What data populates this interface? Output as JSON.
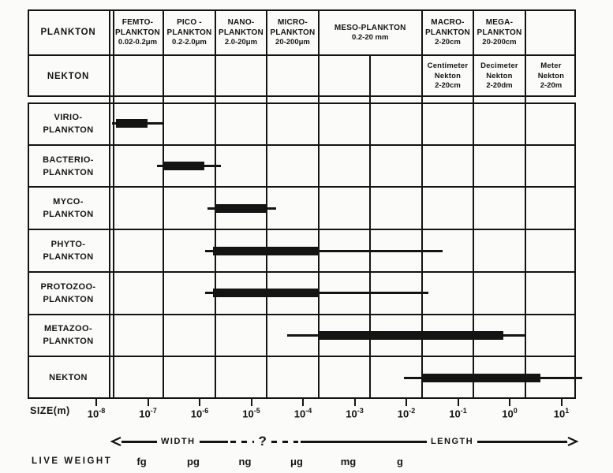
{
  "colors": {
    "ink": "#141414",
    "paper": "#fbfbf9"
  },
  "header": {
    "plankton_label": "PLANKTON",
    "nekton_label": "NEKTON",
    "size_classes": [
      {
        "name_lines": [
          "FEMTO-",
          "PLANKTON"
        ],
        "size_label": "0.02-0.2μm",
        "span_m": [
          2e-08,
          2e-07
        ]
      },
      {
        "name_lines": [
          "PICO -",
          "PLANKTON"
        ],
        "size_label": "0.2-2.0μm",
        "span_m": [
          2e-07,
          2e-06
        ]
      },
      {
        "name_lines": [
          "NANO-",
          "PLANKTON"
        ],
        "size_label": "2.0-20μm",
        "span_m": [
          2e-06,
          2e-05
        ]
      },
      {
        "name_lines": [
          "MICRO-",
          "PLANKTON"
        ],
        "size_label": "20-200μm",
        "span_m": [
          2e-05,
          0.0002
        ]
      },
      {
        "name_lines": [
          "MESO-PLANKTON"
        ],
        "size_label": "0.2-20 mm",
        "span_m": [
          0.0002,
          0.02
        ]
      },
      {
        "name_lines": [
          "MACRO-",
          "PLANKTON"
        ],
        "size_label": "2-20cm",
        "span_m": [
          0.02,
          0.2
        ]
      },
      {
        "name_lines": [
          "MEGA-",
          "PLANKTON"
        ],
        "size_label": "20-200cm",
        "span_m": [
          0.2,
          2
        ]
      },
      {
        "name_lines": [],
        "size_label": "",
        "span_m": [
          2,
          20
        ]
      }
    ],
    "nekton_classes": [
      {
        "name_lines": [
          "Centimeter",
          "Nekton"
        ],
        "size_label": "2-20cm",
        "span_m": [
          0.02,
          0.2
        ]
      },
      {
        "name_lines": [
          "Decimeter",
          "Nekton"
        ],
        "size_label": "2-20dm",
        "span_m": [
          0.2,
          2
        ]
      },
      {
        "name_lines": [
          "Meter",
          "Nekton"
        ],
        "size_label": "2-20m",
        "span_m": [
          2,
          20
        ]
      }
    ]
  },
  "chart_data": {
    "type": "bar",
    "subtype": "horizontal-log-range-bars",
    "xlabel": "SIZE(m)",
    "xscale": "log",
    "xlim_m": [
      1e-08,
      10.0
    ],
    "x_ticks": [
      "10^-8",
      "10^-7",
      "10^-6",
      "10^-5",
      "10^-4",
      "10^-3",
      "10^-2",
      "10^-1",
      "10^0",
      "10^1"
    ],
    "grid_columns_m": [
      2e-08,
      2e-07,
      2e-06,
      2e-05,
      0.0002,
      0.002,
      0.02,
      0.2,
      2,
      20
    ],
    "rows": [
      {
        "label_lines": [
          "VIRIO-",
          "PLANKTON"
        ],
        "core_range_m": [
          2.4e-08,
          1e-07
        ],
        "full_range_m": [
          2e-08,
          2e-07
        ]
      },
      {
        "label_lines": [
          "BACTERIO-",
          "PLANKTON"
        ],
        "core_range_m": [
          2e-07,
          1.25e-06
        ],
        "full_range_m": [
          1.5e-07,
          2.6e-06
        ]
      },
      {
        "label_lines": [
          "MYCO-",
          "PLANKTON"
        ],
        "core_range_m": [
          2e-06,
          2e-05
        ],
        "full_range_m": [
          1.4e-06,
          3e-05
        ]
      },
      {
        "label_lines": [
          "PHYTO-",
          "PLANKTON"
        ],
        "core_range_m": [
          1.8e-06,
          0.0002
        ],
        "full_range_m": [
          1.3e-06,
          0.05
        ]
      },
      {
        "label_lines": [
          "PROTOZOO-",
          "PLANKTON"
        ],
        "core_range_m": [
          1.8e-06,
          0.0002
        ],
        "full_range_m": [
          1.3e-06,
          0.027
        ]
      },
      {
        "label_lines": [
          "METAZOO-",
          "PLANKTON"
        ],
        "core_range_m": [
          0.0002,
          0.75
        ],
        "full_range_m": [
          5e-05,
          2
        ]
      },
      {
        "label_lines": [
          "NEKTON"
        ],
        "core_range_m": [
          0.02,
          4
        ],
        "full_range_m": [
          0.009,
          25.0
        ]
      }
    ],
    "weight_unit_positions_m": [
      1e-07,
      1e-06,
      1e-05,
      0.0001,
      0.001,
      0.01
    ]
  },
  "footer": {
    "width_label": "WIDTH",
    "question": "?",
    "length_label": "LENGTH",
    "live_weight_label": "LIVE WEIGHT",
    "weight_units": [
      "fg",
      "pg",
      "ng",
      "μg",
      "mg",
      "g"
    ]
  }
}
